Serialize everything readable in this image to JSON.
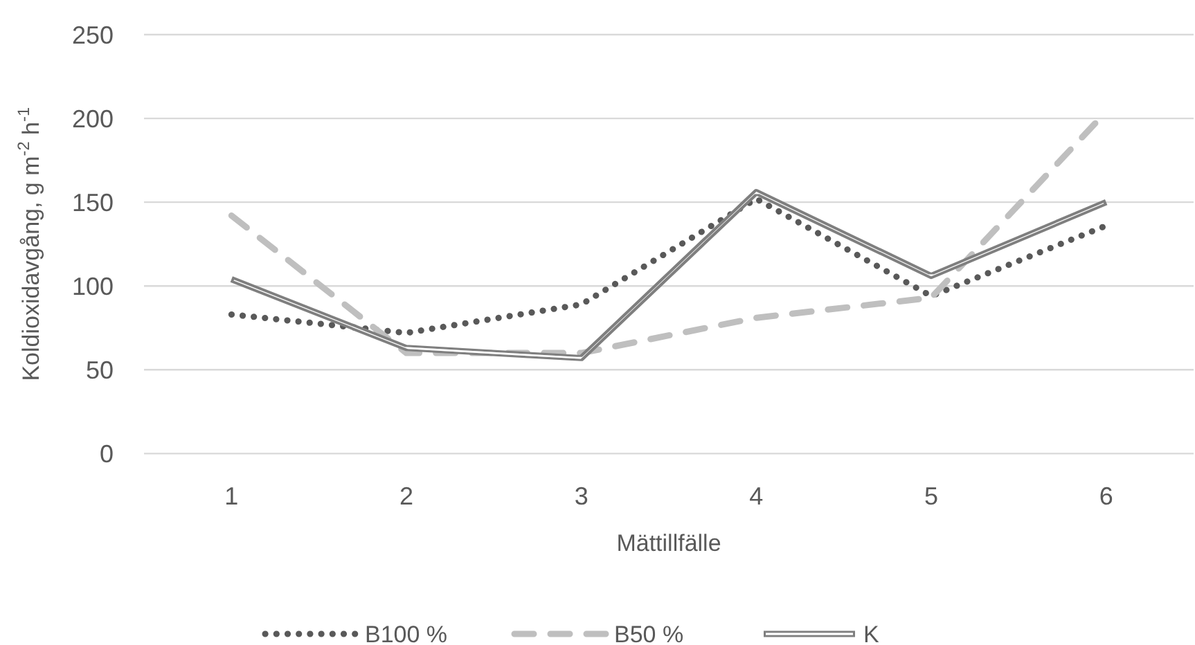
{
  "chart_data": {
    "type": "line",
    "xlabel": "Mättillfälle",
    "ylabel": "Koldioxidavgång, g m$^{-2}$ h$^{-1}$",
    "categories": [
      "1",
      "2",
      "3",
      "4",
      "5",
      "6"
    ],
    "series": [
      {
        "name": "B100 %",
        "color": "#595959",
        "line_style": "dotted",
        "values": [
          83,
          72,
          89,
          152,
          94,
          136
        ]
      },
      {
        "name": "B50 %",
        "color": "#bfbfbf",
        "line_style": "dashed",
        "values": [
          142,
          60,
          60,
          81,
          93,
          204
        ]
      },
      {
        "name": "K",
        "color": "#7f7f7f",
        "line_style": "solid",
        "values": [
          104,
          63,
          57,
          156,
          106,
          150
        ]
      }
    ],
    "ylim": [
      0,
      250
    ],
    "yticks": [
      0,
      50,
      100,
      150,
      200,
      250
    ],
    "grid": "y",
    "legend": "bottom",
    "marker": "none"
  }
}
